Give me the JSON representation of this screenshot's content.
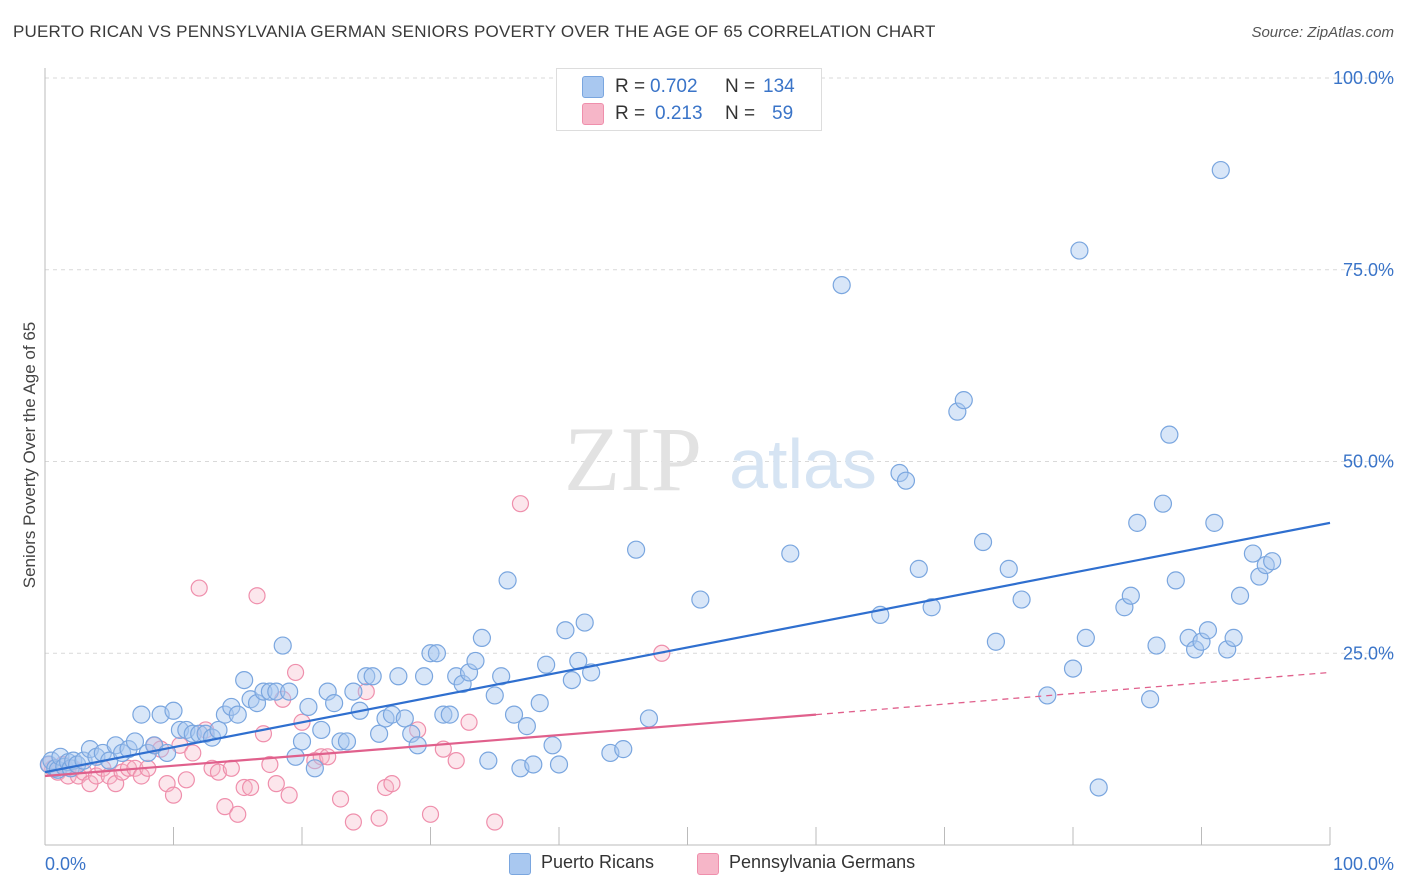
{
  "header": {
    "title": "PUERTO RICAN VS PENNSYLVANIA GERMAN SENIORS POVERTY OVER THE AGE OF 65 CORRELATION CHART",
    "source": "Source: ZipAtlas.com"
  },
  "watermark": {
    "part1": "ZIP",
    "part2": "atlas"
  },
  "legend": {
    "rows": [
      {
        "r_label": "R =",
        "r_value": "0.702",
        "n_label": "N =",
        "n_value": "134",
        "color": "#a9c8f0"
      },
      {
        "r_label": "R =",
        "r_value": "0.213",
        "n_label": "N =",
        "n_value": "59",
        "color": "#f6b6c8"
      }
    ]
  },
  "bottom_legend": {
    "items": [
      {
        "label": "Puerto Ricans",
        "color": "#a9c8f0"
      },
      {
        "label": "Pennsylvania Germans",
        "color": "#f6b6c8"
      }
    ]
  },
  "chart_data": {
    "type": "scatter",
    "title": "PUERTO RICAN VS PENNSYLVANIA GERMAN SENIORS POVERTY OVER THE AGE OF 65 CORRELATION CHART",
    "xlabel": "",
    "ylabel": "Seniors Poverty Over the Age of 65",
    "xlim": [
      0,
      100
    ],
    "ylim": [
      0,
      100
    ],
    "x_tick_labels": [
      "0.0%",
      "100.0%"
    ],
    "y_tick_labels": [
      "25.0%",
      "50.0%",
      "75.0%",
      "100.0%"
    ],
    "y_ticks": [
      25,
      50,
      75,
      100
    ],
    "grid": true,
    "legend_position": "top-center",
    "colors": {
      "puerto_ricans_fill": "#a9c8f0",
      "puerto_ricans_edge": "#7aa6df",
      "puerto_ricans_line": "#2f6fcf",
      "pa_germans_fill": "#f6b6c8",
      "pa_germans_edge": "#ef8fac",
      "pa_germans_line": "#e0608c",
      "tick_label": "#3a74c8",
      "grid": "#d9d9d9"
    },
    "series": [
      {
        "name": "Puerto Ricans",
        "r": 0.702,
        "n": 134,
        "trend": {
          "x": [
            0,
            100
          ],
          "y": [
            9.5,
            42.0
          ]
        },
        "points": [
          [
            0.3,
            10.5
          ],
          [
            0.5,
            11
          ],
          [
            0.8,
            10
          ],
          [
            1,
            9.8
          ],
          [
            1.2,
            11.5
          ],
          [
            1.5,
            10.2
          ],
          [
            1.8,
            10.8
          ],
          [
            2,
            10
          ],
          [
            2.2,
            11
          ],
          [
            2.5,
            10.5
          ],
          [
            3,
            11
          ],
          [
            3.5,
            12.5
          ],
          [
            4,
            11.5
          ],
          [
            4.5,
            12
          ],
          [
            5,
            11
          ],
          [
            5.5,
            13
          ],
          [
            6,
            12
          ],
          [
            6.5,
            12.5
          ],
          [
            7,
            13.5
          ],
          [
            7.5,
            17
          ],
          [
            8,
            12
          ],
          [
            8.5,
            13
          ],
          [
            9,
            17
          ],
          [
            9.5,
            12
          ],
          [
            10,
            17.5
          ],
          [
            10.5,
            15
          ],
          [
            11,
            15
          ],
          [
            11.5,
            14.5
          ],
          [
            12,
            14.5
          ],
          [
            12.5,
            14.5
          ],
          [
            13,
            14
          ],
          [
            13.5,
            15
          ],
          [
            14,
            17
          ],
          [
            14.5,
            18
          ],
          [
            15,
            17
          ],
          [
            15.5,
            21.5
          ],
          [
            16,
            19
          ],
          [
            16.5,
            18.5
          ],
          [
            17,
            20
          ],
          [
            17.5,
            20
          ],
          [
            18,
            20
          ],
          [
            18.5,
            26
          ],
          [
            19,
            20
          ],
          [
            19.5,
            11.5
          ],
          [
            20,
            13.5
          ],
          [
            20.5,
            18
          ],
          [
            21,
            10
          ],
          [
            21.5,
            15
          ],
          [
            22,
            20
          ],
          [
            22.5,
            18.5
          ],
          [
            23,
            13.5
          ],
          [
            23.5,
            13.5
          ],
          [
            24,
            20
          ],
          [
            24.5,
            17.5
          ],
          [
            25,
            22
          ],
          [
            25.5,
            22
          ],
          [
            26,
            14.5
          ],
          [
            26.5,
            16.5
          ],
          [
            27,
            17
          ],
          [
            27.5,
            22
          ],
          [
            28,
            16.5
          ],
          [
            28.5,
            14.5
          ],
          [
            29,
            13
          ],
          [
            29.5,
            22
          ],
          [
            30,
            25
          ],
          [
            30.5,
            25
          ],
          [
            31,
            17
          ],
          [
            31.5,
            17
          ],
          [
            32,
            22
          ],
          [
            32.5,
            21
          ],
          [
            33,
            22.5
          ],
          [
            33.5,
            24
          ],
          [
            34,
            27
          ],
          [
            34.5,
            11
          ],
          [
            35,
            19.5
          ],
          [
            35.5,
            22
          ],
          [
            36,
            34.5
          ],
          [
            36.5,
            17
          ],
          [
            37,
            10
          ],
          [
            37.5,
            15.5
          ],
          [
            38,
            10.5
          ],
          [
            38.5,
            18.5
          ],
          [
            39,
            23.5
          ],
          [
            39.5,
            13
          ],
          [
            40,
            10.5
          ],
          [
            40.5,
            28
          ],
          [
            41,
            21.5
          ],
          [
            41.5,
            24
          ],
          [
            42,
            29
          ],
          [
            42.5,
            22.5
          ],
          [
            44,
            12
          ],
          [
            45,
            12.5
          ],
          [
            46,
            38.5
          ],
          [
            47,
            16.5
          ],
          [
            51,
            32
          ],
          [
            58,
            38
          ],
          [
            62,
            73
          ],
          [
            65,
            30
          ],
          [
            66.5,
            48.5
          ],
          [
            67,
            47.5
          ],
          [
            68,
            36
          ],
          [
            69,
            31
          ],
          [
            71,
            56.5
          ],
          [
            71.5,
            58
          ],
          [
            73,
            39.5
          ],
          [
            74,
            26.5
          ],
          [
            75,
            36
          ],
          [
            76,
            32
          ],
          [
            78,
            19.5
          ],
          [
            80,
            23
          ],
          [
            80.5,
            77.5
          ],
          [
            81,
            27
          ],
          [
            82,
            7.5
          ],
          [
            84,
            31
          ],
          [
            84.5,
            32.5
          ],
          [
            85,
            42
          ],
          [
            86,
            19
          ],
          [
            86.5,
            26
          ],
          [
            87,
            44.5
          ],
          [
            87.5,
            53.5
          ],
          [
            88,
            34.5
          ],
          [
            89,
            27
          ],
          [
            89.5,
            25.5
          ],
          [
            90,
            26.5
          ],
          [
            90.5,
            28
          ],
          [
            91,
            42
          ],
          [
            91.5,
            88
          ],
          [
            92,
            25.5
          ],
          [
            92.5,
            27
          ],
          [
            93,
            32.5
          ],
          [
            94,
            38
          ],
          [
            94.5,
            35
          ],
          [
            95,
            36.5
          ],
          [
            95.5,
            37
          ]
        ]
      },
      {
        "name": "Pennsylvania Germans",
        "r": 0.213,
        "n": 59,
        "trend": {
          "x": [
            0,
            60
          ],
          "y": [
            9.0,
            17.0
          ],
          "dashed_extension": {
            "x": [
              60,
              100
            ],
            "y": [
              17.0,
              22.5
            ]
          }
        },
        "points": [
          [
            0.3,
            10.5
          ],
          [
            0.6,
            10
          ],
          [
            1,
            9.5
          ],
          [
            1.4,
            10.5
          ],
          [
            1.8,
            9
          ],
          [
            2.2,
            10
          ],
          [
            2.6,
            9
          ],
          [
            3,
            9.5
          ],
          [
            3.5,
            8
          ],
          [
            4,
            9
          ],
          [
            4.5,
            10
          ],
          [
            5,
            9
          ],
          [
            5.5,
            8
          ],
          [
            6,
            9.5
          ],
          [
            6.5,
            10
          ],
          [
            7,
            10
          ],
          [
            7.5,
            9
          ],
          [
            8,
            10
          ],
          [
            8.5,
            13
          ],
          [
            9,
            12.5
          ],
          [
            9.5,
            8
          ],
          [
            10,
            6.5
          ],
          [
            10.5,
            13
          ],
          [
            11,
            8.5
          ],
          [
            11.5,
            12
          ],
          [
            12,
            33.5
          ],
          [
            12.5,
            15
          ],
          [
            13,
            10
          ],
          [
            13.5,
            9.5
          ],
          [
            14,
            5
          ],
          [
            14.5,
            10
          ],
          [
            15,
            4
          ],
          [
            15.5,
            7.5
          ],
          [
            16,
            7.5
          ],
          [
            16.5,
            32.5
          ],
          [
            17,
            14.5
          ],
          [
            17.5,
            10.5
          ],
          [
            18,
            8
          ],
          [
            18.5,
            19
          ],
          [
            19,
            6.5
          ],
          [
            19.5,
            22.5
          ],
          [
            20,
            16
          ],
          [
            21,
            11
          ],
          [
            21.5,
            11.5
          ],
          [
            22,
            11.5
          ],
          [
            23,
            6
          ],
          [
            24,
            3
          ],
          [
            25,
            20
          ],
          [
            26,
            3.5
          ],
          [
            26.5,
            7.5
          ],
          [
            27,
            8
          ],
          [
            29,
            15
          ],
          [
            30,
            4
          ],
          [
            31,
            12.5
          ],
          [
            32,
            11
          ],
          [
            33,
            16
          ],
          [
            35,
            3
          ],
          [
            37,
            44.5
          ],
          [
            48,
            25
          ]
        ]
      }
    ]
  }
}
